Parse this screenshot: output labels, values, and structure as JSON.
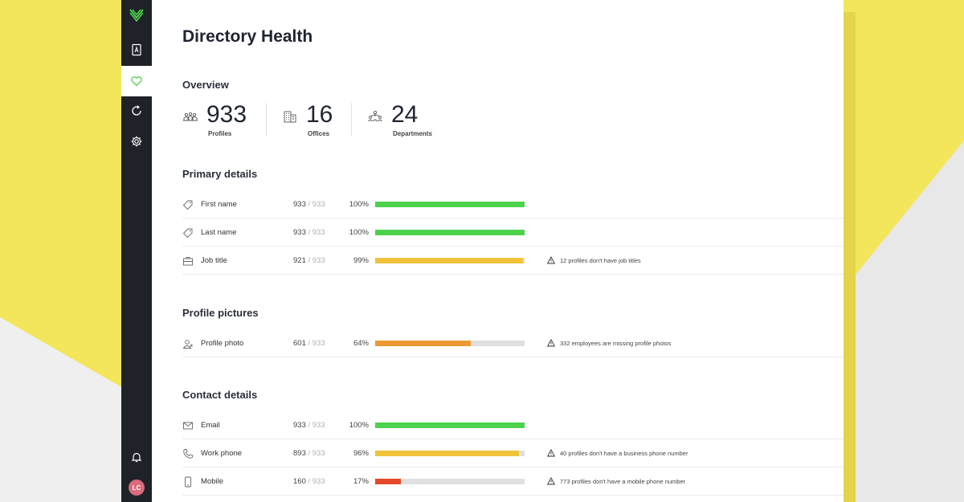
{
  "app": {
    "title": "Directory Health",
    "avatar_initials": "LC"
  },
  "colors": {
    "green": "#4cd24c",
    "yellow": "#f0c33a",
    "orange": "#ec9934",
    "red": "#e5492a",
    "sidebar": "#1f2229",
    "accent": "#4cd24c"
  },
  "sidebar": {
    "items": [
      {
        "icon": "contacts-icon",
        "active": false
      },
      {
        "icon": "heart-icon",
        "active": true
      },
      {
        "icon": "sync-icon",
        "active": false
      },
      {
        "icon": "gear-icon",
        "active": false
      },
      {
        "icon": "bell-icon",
        "active": false
      }
    ]
  },
  "overview": {
    "title": "Overview",
    "stats": [
      {
        "value": "933",
        "label": "Profiles",
        "icon": "people-icon"
      },
      {
        "value": "16",
        "label": "Offices",
        "icon": "building-icon"
      },
      {
        "value": "24",
        "label": "Departments",
        "icon": "org-chart-icon"
      }
    ]
  },
  "sections": {
    "primary": {
      "title": "Primary details",
      "rows": [
        {
          "label": "First name",
          "count": "933",
          "total": "/ 933",
          "pct": "100%",
          "fill": 1.0,
          "color": "green",
          "icon": "tag-icon",
          "warning": ""
        },
        {
          "label": "Last name",
          "count": "933",
          "total": "/ 933",
          "pct": "100%",
          "fill": 1.0,
          "color": "green",
          "icon": "tag-icon",
          "warning": ""
        },
        {
          "label": "Job title",
          "count": "921",
          "total": "/ 933",
          "pct": "99%",
          "fill": 0.99,
          "color": "yellow",
          "icon": "briefcase-icon",
          "warning": "12 profiles don't have job titles"
        }
      ]
    },
    "pictures": {
      "title": "Profile pictures",
      "rows": [
        {
          "label": "Profile photo",
          "count": "601",
          "total": "/ 933",
          "pct": "64%",
          "fill": 0.64,
          "color": "orange",
          "icon": "person-photo-icon",
          "warning": "332 employees are missing profile photos"
        }
      ]
    },
    "contact": {
      "title": "Contact details",
      "rows": [
        {
          "label": "Email",
          "count": "933",
          "total": "/ 933",
          "pct": "100%",
          "fill": 1.0,
          "color": "green",
          "icon": "envelope-icon",
          "warning": ""
        },
        {
          "label": "Work phone",
          "count": "893",
          "total": "/ 933",
          "pct": "96%",
          "fill": 0.96,
          "color": "yellow",
          "icon": "phone-icon",
          "warning": "40 profiles don't have a business phone number"
        },
        {
          "label": "Mobile",
          "count": "160",
          "total": "/ 933",
          "pct": "17%",
          "fill": 0.17,
          "color": "red",
          "icon": "mobile-icon",
          "warning": "773 profiles don't have a mobile phone number"
        }
      ]
    }
  }
}
